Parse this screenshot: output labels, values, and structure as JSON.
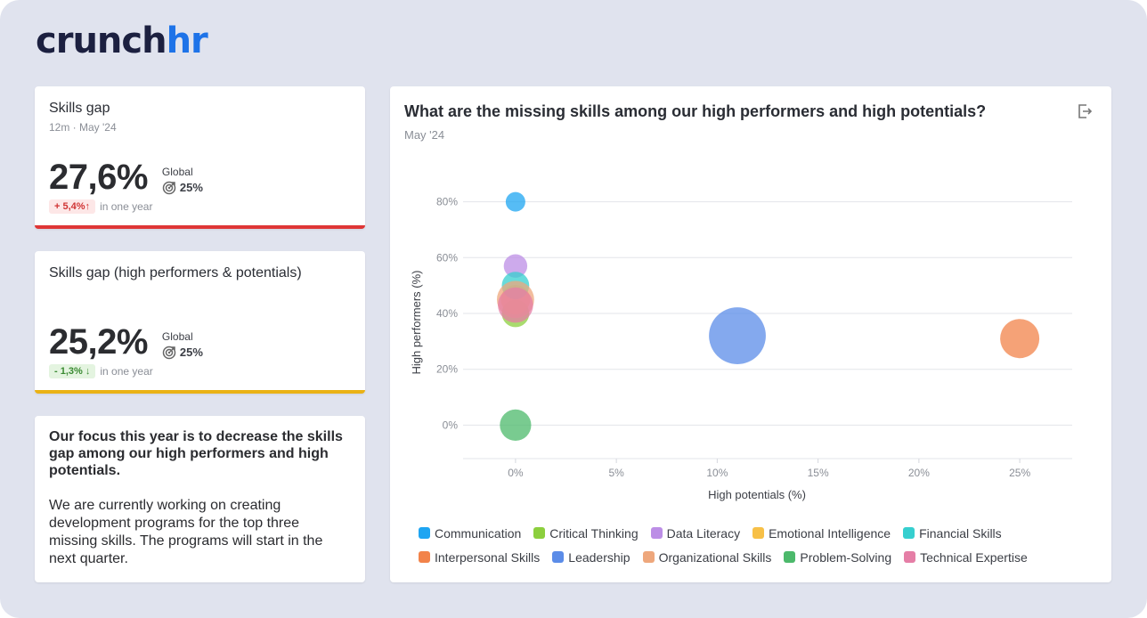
{
  "brand": {
    "logo_part1": "crunch",
    "logo_part2": "hr"
  },
  "kpi1": {
    "title": "Skills gap",
    "subtitle": "12m · May '24",
    "value": "27,6%",
    "global_label": "Global",
    "global_value": "25%",
    "change": "+ 5,4%↑",
    "change_suffix": "in one year"
  },
  "kpi2": {
    "title": "Skills gap (high performers & potentials)",
    "value": "25,2%",
    "global_label": "Global",
    "global_value": "25%",
    "change": "- 1,3% ↓",
    "change_suffix": "in one year"
  },
  "note": {
    "heading": "Our focus this year is to decrease the skills gap among our high performers and high potentials.",
    "body": "We are currently working on creating development programs for the top three missing skills. The programs will start in the next quarter."
  },
  "chart_card": {
    "title": "What are the missing skills among our high performers and high potentials?",
    "subtitle": "May '24",
    "export_icon": "export-icon"
  },
  "colors": {
    "negative": "#df3636",
    "warning": "#eab215",
    "brand": "#1e73e8"
  },
  "chart_data": {
    "type": "scatter",
    "title": "What are the missing skills among our high performers and high potentials?",
    "xlabel": "High potentials (%)",
    "ylabel": "High performers (%)",
    "xlim": [
      -2.6,
      27.6
    ],
    "ylim": [
      -12,
      92
    ],
    "xticks": [
      0,
      5,
      10,
      15,
      20,
      25
    ],
    "yticks": [
      0,
      20,
      40,
      60,
      80
    ],
    "xtick_labels": [
      "0%",
      "5%",
      "10%",
      "15%",
      "20%",
      "25%"
    ],
    "ytick_labels": [
      "0%",
      "20%",
      "40%",
      "60%",
      "80%"
    ],
    "grid": "horizontal",
    "legend_position": "bottom",
    "series": [
      {
        "name": "Communication",
        "color": "#1ea5f2",
        "x": 0,
        "y": 80,
        "size": 1
      },
      {
        "name": "Critical Thinking",
        "color": "#8ccf3e",
        "x": 0,
        "y": 40,
        "size": 1.4
      },
      {
        "name": "Data Literacy",
        "color": "#bc8ee6",
        "x": 0,
        "y": 57,
        "size": 1.2
      },
      {
        "name": "Emotional Intelligence",
        "color": "#f7c047",
        "x": 0,
        "y": 45,
        "size": 1.5
      },
      {
        "name": "Financial Skills",
        "color": "#36cfcf",
        "x": 0,
        "y": 50,
        "size": 1.4
      },
      {
        "name": "Interpersonal Skills",
        "color": "#f2834a",
        "x": 25,
        "y": 31,
        "size": 2.0
      },
      {
        "name": "Leadership",
        "color": "#5b8ce8",
        "x": 11,
        "y": 32,
        "size": 2.9
      },
      {
        "name": "Organizational Skills",
        "color": "#eea77c",
        "x": 0,
        "y": 45,
        "size": 1.9
      },
      {
        "name": "Problem-Solving",
        "color": "#4cb96b",
        "x": 0,
        "y": 0,
        "size": 1.6
      },
      {
        "name": "Technical Expertise",
        "color": "#e57ea6",
        "x": 0,
        "y": 43,
        "size": 1.8
      }
    ]
  }
}
